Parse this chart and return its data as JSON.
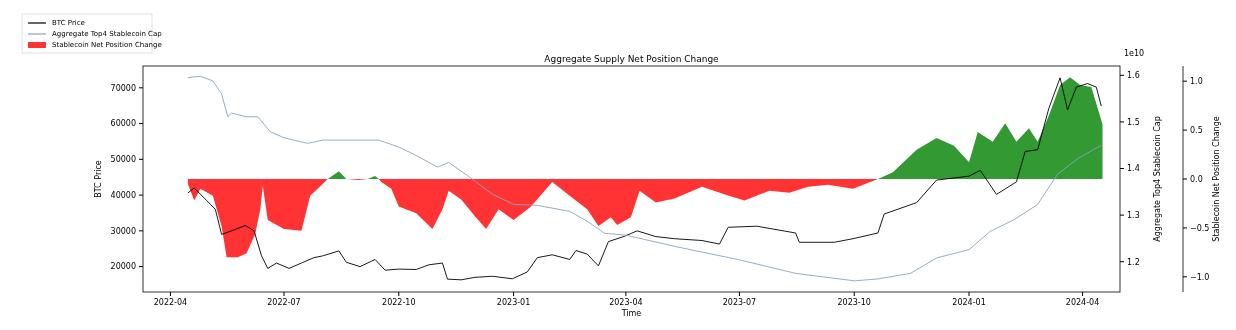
{
  "chart_data": {
    "type": "line",
    "title": "Aggregate Supply Net Position Change",
    "xlabel": "Time",
    "ylabel": "BTC Price",
    "y2label": "Aggregate Top4 Stablecoin Cap",
    "y3label": "Stablecoin Net Position Change",
    "annotations": [
      "1e10"
    ],
    "xlim": [
      "2022-03-10",
      "2024-05-01"
    ],
    "xticks": [
      "2022-04",
      "2022-07",
      "2022-10",
      "2023-01",
      "2023-04",
      "2023-07",
      "2023-10",
      "2024-01",
      "2024-04"
    ],
    "ylim": [
      12900,
      76100
    ],
    "yticks": [
      20000,
      30000,
      40000,
      50000,
      60000,
      70000
    ],
    "y2lim": [
      1.135,
      1.62
    ],
    "y2ticks": [
      1.2,
      1.3,
      1.4,
      1.5,
      1.6
    ],
    "y3lim": [
      -1.155,
      1.155
    ],
    "y3ticks": [
      {
        "value": -1,
        "label": "−1.0"
      },
      {
        "value": -0.5,
        "label": "−0.5"
      },
      {
        "value": 0,
        "label": "0.0"
      },
      {
        "value": 0.5,
        "label": "0.5"
      },
      {
        "value": 1,
        "label": "1.0"
      }
    ],
    "legend": "top left",
    "grid": false,
    "series": [
      {
        "name": "BTC Price",
        "color": "#000000",
        "x": [
          "2022-04-15",
          "2022-04-20",
          "2022-04-30",
          "2022-05-07",
          "2022-05-12",
          "2022-05-20",
          "2022-05-31",
          "2022-06-07",
          "2022-06-13",
          "2022-06-18",
          "2022-06-25",
          "2022-07-05",
          "2022-07-15",
          "2022-07-25",
          "2022-08-01",
          "2022-08-14",
          "2022-08-20",
          "2022-08-31",
          "2022-09-12",
          "2022-09-20",
          "2022-10-01",
          "2022-10-15",
          "2022-10-25",
          "2022-11-05",
          "2022-11-09",
          "2022-11-20",
          "2022-12-01",
          "2022-12-15",
          "2022-12-31",
          "2023-01-12",
          "2023-01-20",
          "2023-02-01",
          "2023-02-15",
          "2023-02-20",
          "2023-03-01",
          "2023-03-10",
          "2023-03-18",
          "2023-03-31",
          "2023-04-10",
          "2023-04-25",
          "2023-05-10",
          "2023-06-01",
          "2023-06-15",
          "2023-06-22",
          "2023-07-15",
          "2023-08-15",
          "2023-08-18",
          "2023-09-15",
          "2023-09-30",
          "2023-10-20",
          "2023-10-25",
          "2023-11-20",
          "2023-12-06",
          "2024-01-01",
          "2024-01-10",
          "2024-01-23",
          "2024-02-08",
          "2024-02-15",
          "2024-02-25",
          "2024-03-05",
          "2024-03-14",
          "2024-03-20",
          "2024-03-27",
          "2024-04-05",
          "2024-04-12",
          "2024-04-16"
        ],
        "values": [
          40600,
          42000,
          38500,
          36000,
          29000,
          30000,
          31500,
          30000,
          23000,
          19500,
          21000,
          19500,
          21000,
          22500,
          23000,
          24400,
          21200,
          20000,
          22000,
          19000,
          19300,
          19200,
          20500,
          21000,
          16500,
          16300,
          17000,
          17300,
          16600,
          18500,
          22500,
          23300,
          22000,
          24500,
          23500,
          20200,
          27000,
          28500,
          30000,
          28400,
          27800,
          27300,
          26300,
          31000,
          31300,
          29400,
          26800,
          26800,
          27800,
          29400,
          34700,
          37900,
          44200,
          45300,
          46900,
          40200,
          43700,
          52200,
          52700,
          64300,
          72800,
          63800,
          70200,
          71200,
          70200,
          64900
        ]
      },
      {
        "name": "Aggregate Top4 Stablecoin Cap",
        "axis": "y2",
        "color": "#8aa4b8",
        "x": [
          "2022-04-15",
          "2022-04-25",
          "2022-05-05",
          "2022-05-12",
          "2022-05-17",
          "2022-05-20",
          "2022-06-01",
          "2022-06-10",
          "2022-06-20",
          "2022-07-01",
          "2022-07-20",
          "2022-08-01",
          "2022-09-01",
          "2022-09-15",
          "2022-10-01",
          "2022-10-15",
          "2022-11-01",
          "2022-11-10",
          "2022-11-25",
          "2022-12-15",
          "2023-01-01",
          "2023-01-20",
          "2023-02-15",
          "2023-03-01",
          "2023-03-15",
          "2023-04-01",
          "2023-05-10",
          "2023-07-01",
          "2023-08-15",
          "2023-10-01",
          "2023-10-20",
          "2023-11-15",
          "2023-12-06",
          "2024-01-01",
          "2024-01-18",
          "2024-02-06",
          "2024-02-25",
          "2024-03-12",
          "2024-03-28",
          "2024-04-16"
        ],
        "values": [
          1.595,
          1.598,
          1.588,
          1.56,
          1.511,
          1.519,
          1.511,
          1.511,
          1.479,
          1.466,
          1.454,
          1.461,
          1.461,
          1.461,
          1.446,
          1.428,
          1.403,
          1.413,
          1.385,
          1.345,
          1.323,
          1.321,
          1.308,
          1.287,
          1.261,
          1.257,
          1.233,
          1.204,
          1.175,
          1.159,
          1.163,
          1.175,
          1.208,
          1.226,
          1.265,
          1.29,
          1.323,
          1.388,
          1.421,
          1.45
        ]
      },
      {
        "name": "Stablecoin Net Position Change",
        "type": "area",
        "axis": "y3",
        "color": "#ff3333",
        "x": [
          "2022-04-15",
          "2022-04-20",
          "2022-04-25",
          "2022-05-05",
          "2022-05-12",
          "2022-05-16",
          "2022-05-25",
          "2022-06-01",
          "2022-06-08",
          "2022-06-12",
          "2022-06-14",
          "2022-06-18",
          "2022-07-01",
          "2022-07-15",
          "2022-07-22",
          "2022-08-01",
          "2022-08-05",
          "2022-08-14",
          "2022-08-20",
          "2022-08-30",
          "2022-09-06",
          "2022-09-12",
          "2022-09-15",
          "2022-09-17",
          "2022-09-25",
          "2022-10-01",
          "2022-10-15",
          "2022-10-28",
          "2022-11-05",
          "2022-11-10",
          "2022-11-20",
          "2022-12-01",
          "2022-12-10",
          "2022-12-20",
          "2023-01-01",
          "2023-01-15",
          "2023-02-01",
          "2023-02-15",
          "2023-03-01",
          "2023-03-10",
          "2023-03-20",
          "2023-03-25",
          "2023-04-05",
          "2023-04-12",
          "2023-04-25",
          "2023-05-10",
          "2023-06-01",
          "2023-06-20",
          "2023-07-05",
          "2023-07-25",
          "2023-08-10",
          "2023-08-25",
          "2023-09-10",
          "2023-09-30",
          "2023-10-20"
        ],
        "values": [
          -0.05,
          -0.22,
          -0.1,
          -0.17,
          -0.48,
          -0.8,
          -0.8,
          -0.76,
          -0.56,
          -0.31,
          -0.07,
          -0.42,
          -0.51,
          -0.53,
          -0.17,
          -0.05,
          0,
          null,
          0,
          -0.01,
          0,
          null,
          0,
          -0.03,
          -0.1,
          -0.28,
          -0.35,
          -0.51,
          -0.31,
          -0.12,
          -0.21,
          -0.38,
          -0.51,
          -0.31,
          -0.42,
          -0.28,
          -0.03,
          -0.17,
          -0.31,
          -0.48,
          -0.39,
          -0.47,
          -0.39,
          -0.12,
          -0.24,
          -0.2,
          -0.08,
          -0.16,
          -0.22,
          -0.12,
          -0.14,
          -0.08,
          -0.06,
          -0.1,
          0
        ]
      },
      {
        "type": "area",
        "axis": "y3",
        "color": "#339933",
        "x": [
          "2022-08-05",
          "2022-08-14",
          "2022-08-20",
          "2022-09-06",
          "2022-09-12",
          "2022-09-15",
          "2023-10-20",
          "2023-11-01",
          "2023-11-20",
          "2023-12-06",
          "2023-12-20",
          "2024-01-01",
          "2024-01-08",
          "2024-01-20",
          "2024-01-30",
          "2024-02-08",
          "2024-02-18",
          "2024-02-25",
          "2024-03-05",
          "2024-03-14",
          "2024-03-22",
          "2024-03-30",
          "2024-04-08",
          "2024-04-17"
        ],
        "values": [
          0,
          0.08,
          0,
          0,
          0.03,
          0,
          0,
          0.07,
          0.3,
          0.42,
          0.34,
          0.17,
          0.48,
          0.38,
          0.57,
          0.38,
          0.52,
          0.38,
          0.65,
          0.96,
          1.04,
          0.96,
          0.94,
          0.56
        ]
      }
    ]
  }
}
